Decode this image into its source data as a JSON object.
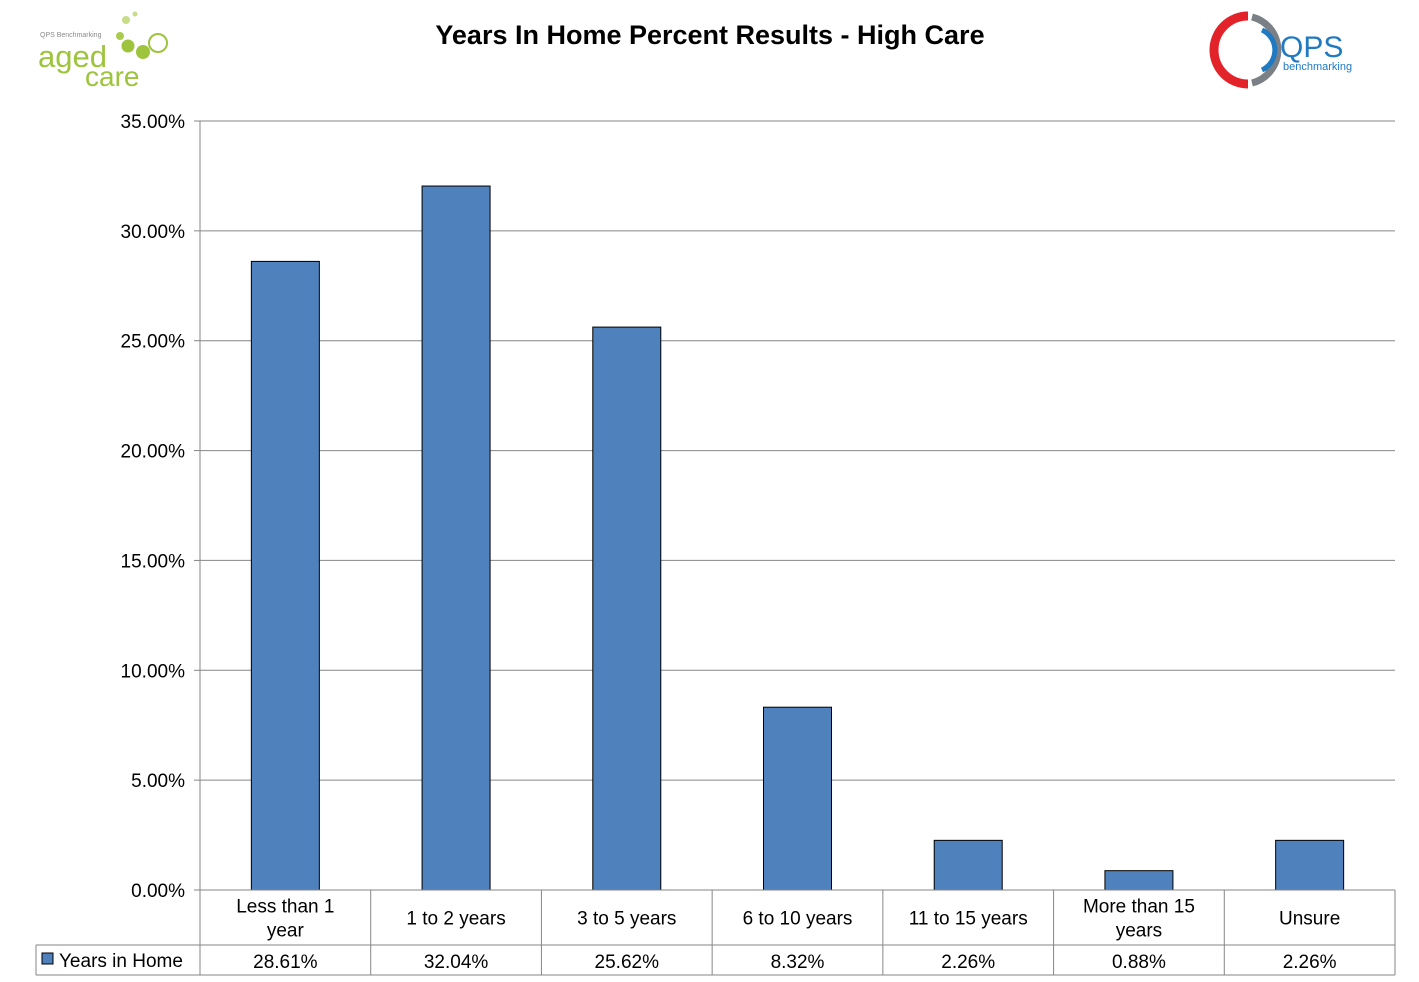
{
  "logos": {
    "left": {
      "small_text": "QPS Benchmarking",
      "word1": "aged",
      "word2": "care",
      "color": "#9dc43c"
    },
    "right": {
      "word": "QPS",
      "sub": "benchmarking",
      "red": "#e2232a",
      "gray": "#7b7f86",
      "blue": "#1f7ac2"
    }
  },
  "colors": {
    "bar": "#4f81bd",
    "bar_stroke": "#000000",
    "grid": "#868686"
  },
  "chart_data": {
    "type": "bar",
    "title": "Years In Home Percent Results - High Care",
    "categories": [
      "Less than 1 year",
      "1 to 2 years",
      "3 to 5 years",
      "6 to 10 years",
      "11 to 15 years",
      "More than 15 years",
      "Unsure"
    ],
    "category_lines": [
      [
        "Less than 1",
        "year"
      ],
      [
        "1 to 2 years"
      ],
      [
        "3 to 5 years"
      ],
      [
        "6 to 10 years"
      ],
      [
        "11 to 15 years"
      ],
      [
        "More than 15",
        "years"
      ],
      [
        "Unsure"
      ]
    ],
    "series": [
      {
        "name": "Years in Home",
        "values": [
          28.61,
          32.04,
          25.62,
          8.32,
          2.26,
          0.88,
          2.26
        ],
        "labels": [
          "28.61%",
          "32.04%",
          "25.62%",
          "8.32%",
          "2.26%",
          "0.88%",
          "2.26%"
        ]
      }
    ],
    "yticks": [
      "0.00%",
      "5.00%",
      "10.00%",
      "15.00%",
      "20.00%",
      "25.00%",
      "30.00%",
      "35.00%"
    ],
    "ylim": [
      0,
      35
    ],
    "grid": true,
    "legend": "data-table"
  }
}
